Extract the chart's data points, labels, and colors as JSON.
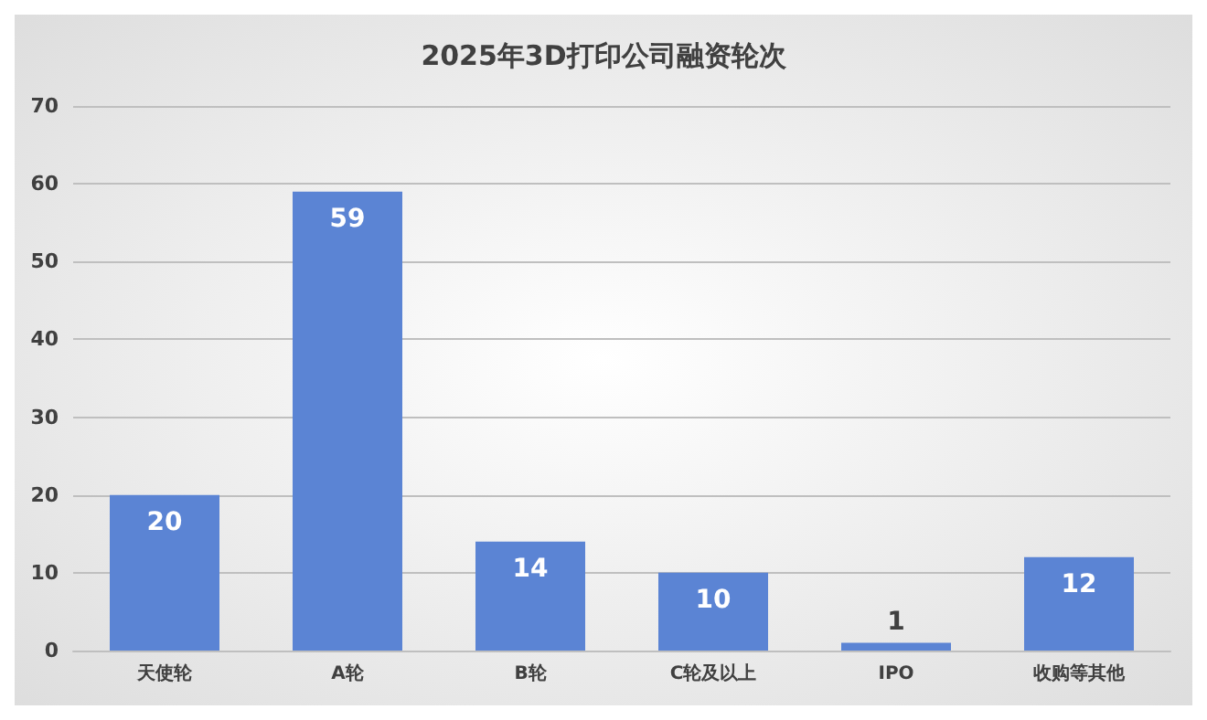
{
  "chart_data": {
    "type": "bar",
    "title": "2025年3D打印公司融资轮次",
    "categories": [
      "天使轮",
      "A轮",
      "B轮",
      "C轮及以上",
      "IPO",
      "收购等其他"
    ],
    "values": [
      20,
      59,
      14,
      10,
      1,
      12
    ],
    "color": "#5b84d4",
    "ylim": [
      0,
      70
    ],
    "yticks": [
      0,
      10,
      20,
      30,
      40,
      50,
      60,
      70
    ],
    "grid": "y",
    "data_labels": true
  }
}
